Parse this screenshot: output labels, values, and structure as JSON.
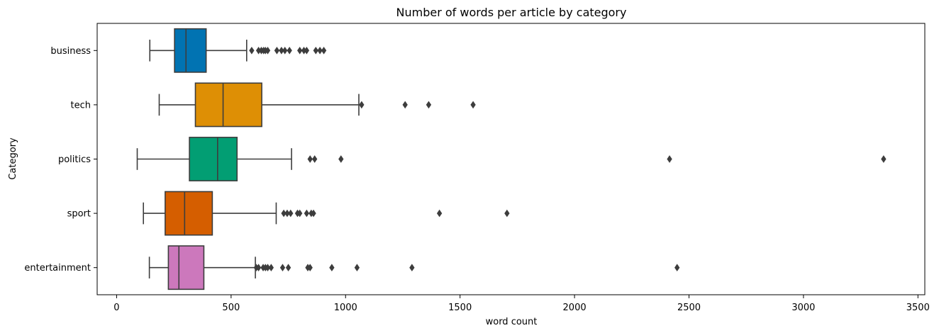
{
  "chart_data": {
    "type": "boxplot",
    "orientation": "horizontal",
    "title": "Number of words per article by category",
    "xlabel": "word count",
    "ylabel": "Category",
    "xlim": [
      -85,
      3530
    ],
    "xticks": [
      0,
      500,
      1000,
      1500,
      2000,
      2500,
      3000,
      3500
    ],
    "grid": false,
    "categories": [
      "business",
      "tech",
      "politics",
      "sport",
      "entertainment"
    ],
    "boxes": [
      {
        "category": "business",
        "color": "#0173b2",
        "whisker_low": 145,
        "q1": 253,
        "median": 303,
        "q3": 391,
        "whisker_high": 568,
        "outliers": [
          590,
          620,
          632,
          642,
          650,
          660,
          700,
          720,
          735,
          755,
          800,
          818,
          830,
          870,
          888,
          905
        ]
      },
      {
        "category": "tech",
        "color": "#de8f05",
        "whisker_low": 186,
        "q1": 344,
        "median": 465,
        "q3": 634,
        "whisker_high": 1058,
        "outliers": [
          1070,
          1260,
          1363,
          1557
        ]
      },
      {
        "category": "politics",
        "color": "#029e73",
        "whisker_low": 90,
        "q1": 318,
        "median": 441,
        "q3": 526,
        "whisker_high": 764,
        "outliers": [
          845,
          865,
          980,
          2415,
          3350
        ]
      },
      {
        "category": "sport",
        "color": "#d55e00",
        "whisker_low": 117,
        "q1": 212,
        "median": 297,
        "q3": 418,
        "whisker_high": 697,
        "outliers": [
          730,
          745,
          760,
          790,
          800,
          830,
          850,
          860,
          1410,
          1705
        ]
      },
      {
        "category": "entertainment",
        "color": "#cc78bc",
        "whisker_low": 143,
        "q1": 226,
        "median": 272,
        "q3": 381,
        "whisker_high": 606,
        "outliers": [
          610,
          620,
          640,
          650,
          660,
          675,
          725,
          750,
          835,
          845,
          940,
          1050,
          1290,
          2448
        ]
      }
    ]
  }
}
